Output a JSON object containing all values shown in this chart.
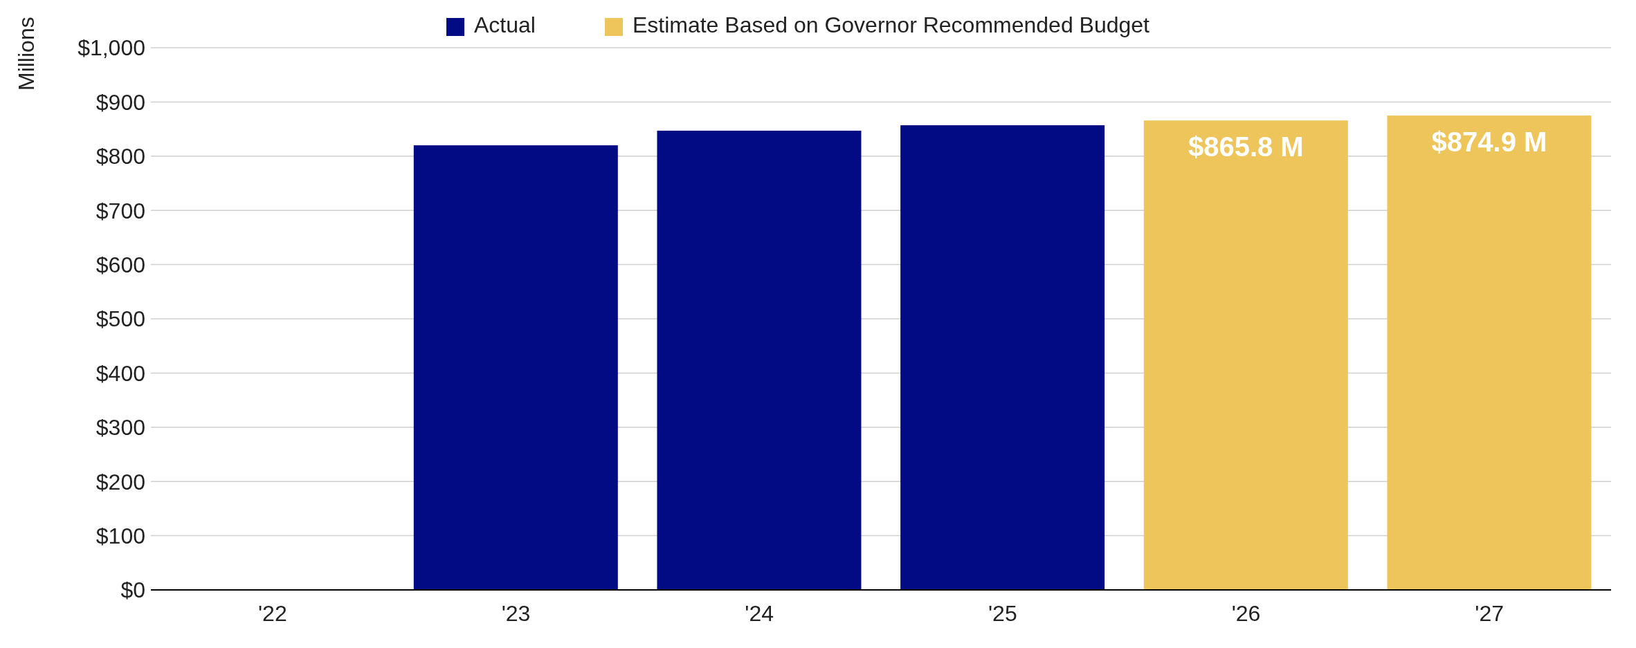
{
  "chart_data": {
    "type": "bar",
    "ylabel": "Millions",
    "categories": [
      "'22",
      "'23",
      "'24",
      "'25",
      "'26",
      "'27"
    ],
    "series": [
      {
        "name": "Actual",
        "color": "#020b84",
        "values": [
          null,
          820,
          847,
          857,
          null,
          null
        ]
      },
      {
        "name": "Estimate Based on Governor Recommended Budget",
        "color": "#edc55a",
        "values": [
          null,
          null,
          null,
          null,
          865.8,
          874.9
        ],
        "value_labels": [
          null,
          null,
          null,
          null,
          "$865.8 M",
          "$874.9 M"
        ]
      }
    ],
    "ylim": [
      0,
      1000
    ],
    "yticks": [
      {
        "value": 0,
        "label": "$0"
      },
      {
        "value": 100,
        "label": "$100"
      },
      {
        "value": 200,
        "label": "$200"
      },
      {
        "value": 300,
        "label": "$300"
      },
      {
        "value": 400,
        "label": "$400"
      },
      {
        "value": 500,
        "label": "$500"
      },
      {
        "value": 600,
        "label": "$600"
      },
      {
        "value": 700,
        "label": "$700"
      },
      {
        "value": 800,
        "label": "$800"
      },
      {
        "value": 900,
        "label": "$900"
      },
      {
        "value": 1000,
        "label": "$1,000"
      }
    ],
    "grid": "y",
    "legend": "top"
  }
}
